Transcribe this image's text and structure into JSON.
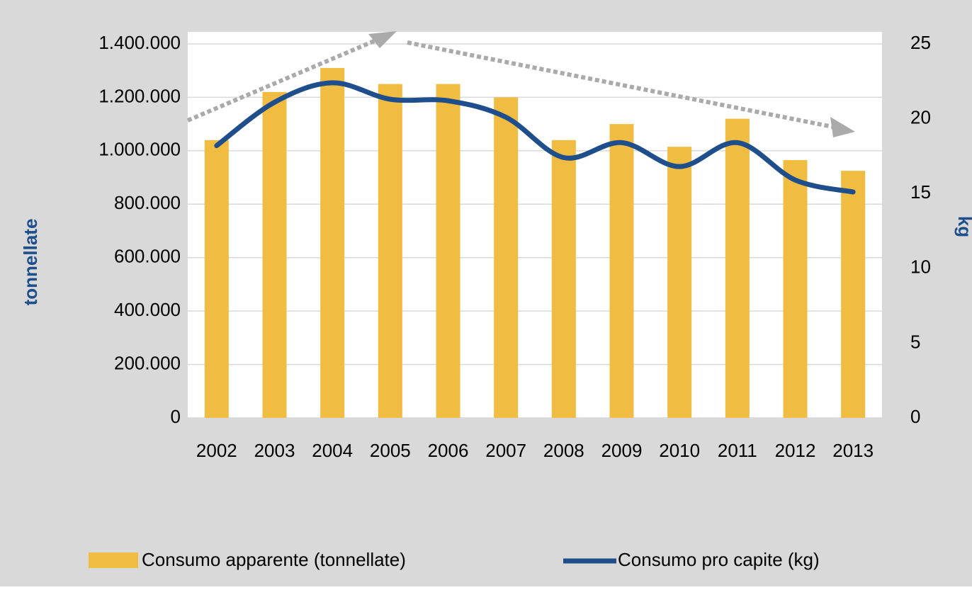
{
  "chart_data": {
    "type": "bar-line",
    "categories": [
      "2002",
      "2003",
      "2004",
      "2005",
      "2006",
      "2007",
      "2008",
      "2009",
      "2010",
      "2011",
      "2012",
      "2013"
    ],
    "series": [
      {
        "name": "Consumo apparente (tonnellate)",
        "color": "#f0bc42",
        "type": "bar",
        "values": [
          1040000,
          1220000,
          1310000,
          1250000,
          1250000,
          1200000,
          1040000,
          1100000,
          1015000,
          1120000,
          965000,
          925000
        ]
      },
      {
        "name": "Consumo pro capite (kg)",
        "color": "#1f4e8c",
        "type": "line",
        "axis": "y2",
        "values": [
          18.2,
          21.1,
          22.4,
          21.3,
          21.2,
          20.1,
          17.4,
          18.4,
          16.8,
          18.4,
          15.9,
          15.1
        ]
      }
    ],
    "y_label": "tonnellate",
    "y2_label": "kg",
    "ylim": [
      0,
      1400000
    ],
    "yticks": [
      0,
      {
        "value": 200000,
        "label": "200.000"
      },
      {
        "value": 400000,
        "label": "400.000"
      },
      {
        "value": 600000,
        "label": "600.000"
      },
      {
        "value": 800000,
        "label": "800.000"
      },
      {
        "value": 1000000,
        "label": "1.000.000"
      },
      {
        "value": 1200000,
        "label": "1.200.000"
      },
      {
        "value": 1400000,
        "label": "1.400.000"
      }
    ],
    "y2lim": [
      0,
      25
    ],
    "y2ticks": [
      0,
      5,
      10,
      15,
      20,
      25
    ],
    "grid": true,
    "legend": "bottom"
  }
}
